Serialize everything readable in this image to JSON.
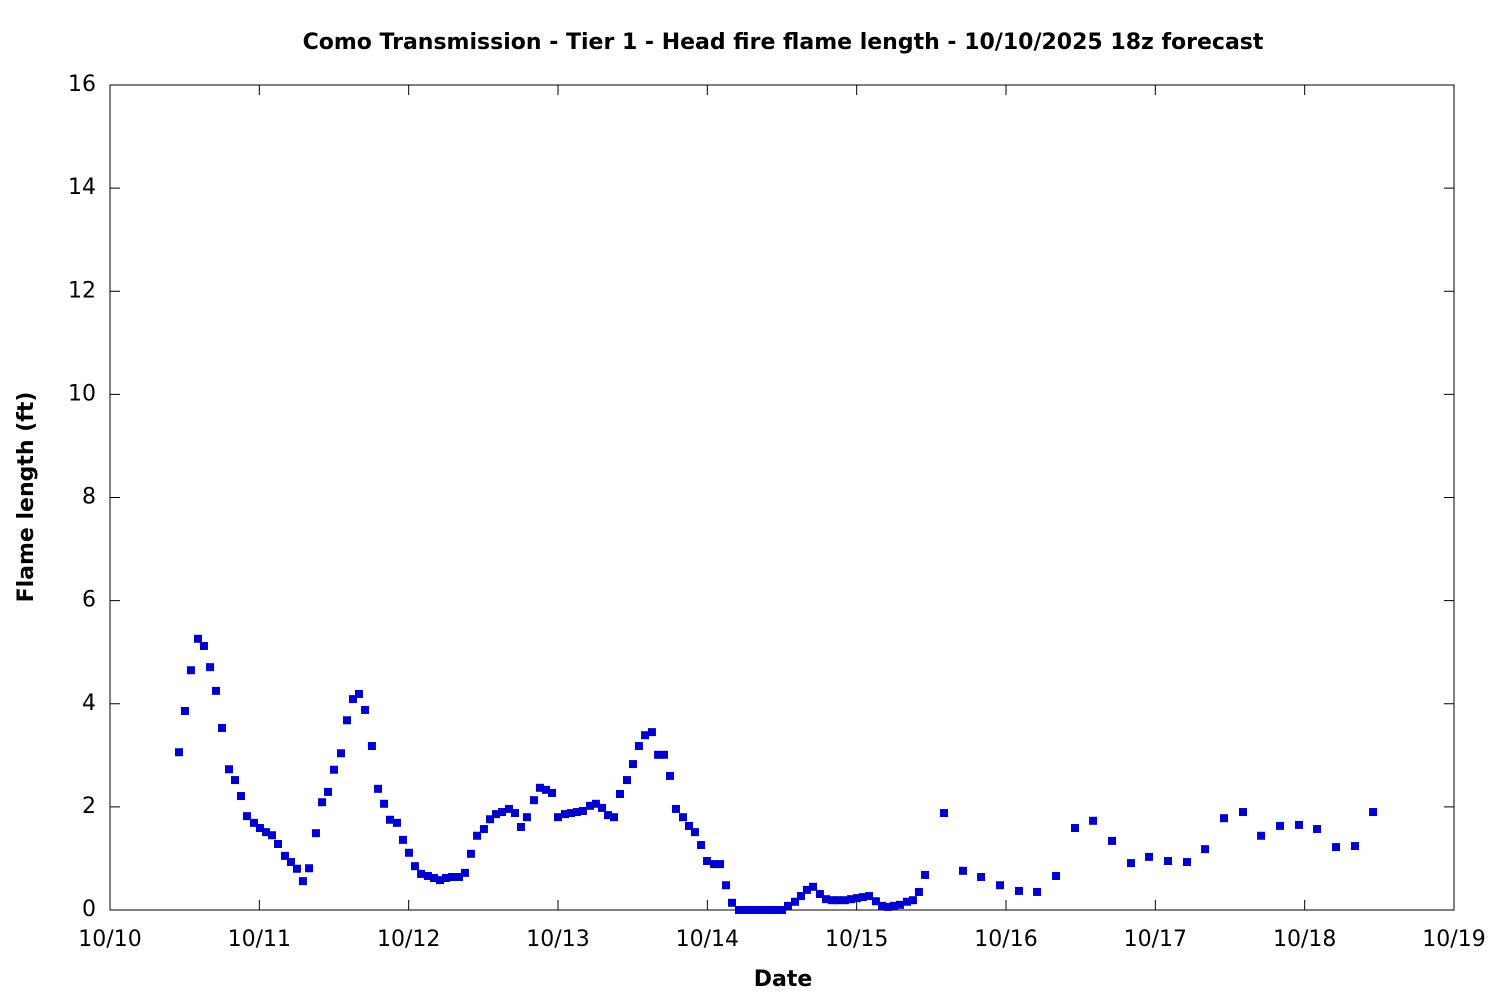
{
  "chart_data": {
    "type": "scatter",
    "title": "Como Transmission - Tier 1 - Head fire flame length - 10/10/2025 18z forecast",
    "x_label": "Date",
    "y_label": "Flame length (ft)",
    "color": "#0000cc",
    "xlim": [
      0,
      9
    ],
    "xticks": [
      {
        "value": 0,
        "label": "10/10"
      },
      {
        "value": 1,
        "label": "10/11"
      },
      {
        "value": 2,
        "label": "10/12"
      },
      {
        "value": 3,
        "label": "10/13"
      },
      {
        "value": 4,
        "label": "10/14"
      },
      {
        "value": 5,
        "label": "10/15"
      },
      {
        "value": 6,
        "label": "10/16"
      },
      {
        "value": 7,
        "label": "10/17"
      },
      {
        "value": 8,
        "label": "10/18"
      },
      {
        "value": 9,
        "label": "10/19"
      }
    ],
    "ylim": [
      0,
      16
    ],
    "yticks": [
      0,
      2,
      4,
      6,
      8,
      10,
      12,
      14,
      16
    ],
    "x": [
      0.462,
      0.502,
      0.542,
      0.589,
      0.629,
      0.67,
      0.71,
      0.75,
      0.797,
      0.837,
      0.877,
      0.917,
      0.964,
      1.004,
      1.045,
      1.085,
      1.125,
      1.172,
      1.212,
      1.252,
      1.292,
      1.333,
      1.379,
      1.42,
      1.46,
      1.5,
      1.547,
      1.587,
      1.627,
      1.667,
      1.708,
      1.754,
      1.795,
      1.835,
      1.875,
      1.922,
      1.962,
      2.002,
      2.042,
      2.083,
      2.129,
      2.17,
      2.21,
      2.25,
      2.29,
      2.337,
      2.377,
      2.417,
      2.458,
      2.504,
      2.545,
      2.585,
      2.625,
      2.672,
      2.712,
      2.752,
      2.792,
      2.839,
      2.879,
      2.92,
      2.96,
      3.0,
      3.047,
      3.087,
      3.127,
      3.167,
      3.214,
      3.254,
      3.295,
      3.335,
      3.375,
      3.415,
      3.462,
      3.502,
      3.542,
      3.583,
      3.629,
      3.67,
      3.71,
      3.75,
      3.79,
      3.837,
      3.877,
      3.917,
      3.958,
      3.998,
      4.045,
      4.085,
      4.125,
      4.165,
      4.212,
      4.252,
      4.292,
      4.333,
      4.379,
      4.42,
      4.46,
      4.5,
      4.54,
      4.587,
      4.627,
      4.667,
      4.708,
      4.754,
      4.795,
      4.835,
      4.875,
      4.922,
      4.962,
      5.002,
      5.042,
      5.083,
      5.129,
      5.17,
      5.21,
      5.25,
      5.29,
      5.337,
      5.377,
      5.417,
      5.458,
      5.585,
      5.712,
      5.833,
      5.96,
      6.087,
      6.208,
      6.335,
      6.462,
      6.583,
      6.71,
      6.837,
      6.958,
      7.085,
      7.212,
      7.333,
      7.46,
      7.587,
      7.708,
      7.835,
      7.962,
      8.083,
      8.21,
      8.337,
      8.458
    ],
    "values": [
      3.06,
      3.86,
      4.65,
      5.26,
      5.12,
      4.71,
      4.25,
      3.53,
      2.73,
      2.52,
      2.21,
      1.82,
      1.69,
      1.59,
      1.51,
      1.45,
      1.28,
      1.05,
      0.93,
      0.8,
      0.56,
      0.81,
      1.49,
      2.09,
      2.29,
      2.72,
      3.04,
      3.68,
      4.09,
      4.19,
      3.88,
      3.18,
      2.35,
      2.06,
      1.75,
      1.69,
      1.36,
      1.11,
      0.85,
      0.7,
      0.66,
      0.62,
      0.58,
      0.62,
      0.64,
      0.64,
      0.72,
      1.09,
      1.44,
      1.57,
      1.76,
      1.86,
      1.9,
      1.96,
      1.88,
      1.61,
      1.8,
      2.13,
      2.37,
      2.33,
      2.27,
      1.8,
      1.86,
      1.88,
      1.9,
      1.92,
      2.02,
      2.06,
      1.98,
      1.84,
      1.8,
      2.25,
      2.52,
      2.83,
      3.18,
      3.39,
      3.45,
      3.01,
      3.01,
      2.6,
      1.96,
      1.8,
      1.63,
      1.51,
      1.26,
      0.95,
      0.89,
      0.89,
      0.48,
      0.14,
      0,
      0,
      0,
      0,
      0,
      0,
      0,
      0,
      0.08,
      0.16,
      0.27,
      0.39,
      0.45,
      0.31,
      0.21,
      0.19,
      0.19,
      0.19,
      0.21,
      0.23,
      0.25,
      0.27,
      0.17,
      0.08,
      0.06,
      0.08,
      0.1,
      0.16,
      0.19,
      0.35,
      0.68,
      1.88,
      0.76,
      0.64,
      0.48,
      0.37,
      0.35,
      0.66,
      1.59,
      1.73,
      1.34,
      0.91,
      1.03,
      0.95,
      0.93,
      1.18,
      1.78,
      1.9,
      1.44,
      1.63,
      1.65,
      1.57,
      1.22,
      1.24,
      1.9
    ]
  }
}
